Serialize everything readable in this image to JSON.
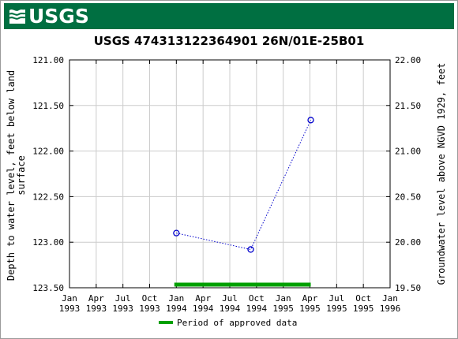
{
  "banner": {
    "logo_text": "USGS",
    "color": "#006f41"
  },
  "chart_data": {
    "type": "scatter",
    "title": "USGS 474313122364901 26N/01E-25B01",
    "ylabel_left": "Depth to water level, feet below land surface",
    "ylabel_right": "Groundwater level above NGVD 1929, feet",
    "left_axis": {
      "min": 121.0,
      "max": 123.5,
      "inverted": true,
      "ticks": [
        "121.00",
        "121.50",
        "122.00",
        "122.50",
        "123.00",
        "123.50"
      ]
    },
    "right_axis": {
      "min": 19.5,
      "max": 22.0,
      "ticks": [
        "22.00",
        "21.50",
        "21.00",
        "20.50",
        "20.00",
        "19.50"
      ]
    },
    "x_axis": {
      "start": "1993-01-01",
      "end": "1996-01-01",
      "ticks": [
        [
          "Jan",
          "1993"
        ],
        [
          "Apr",
          "1993"
        ],
        [
          "Jul",
          "1993"
        ],
        [
          "Oct",
          "1993"
        ],
        [
          "Jan",
          "1994"
        ],
        [
          "Apr",
          "1994"
        ],
        [
          "Jul",
          "1994"
        ],
        [
          "Oct",
          "1994"
        ],
        [
          "Jan",
          "1995"
        ],
        [
          "Apr",
          "1995"
        ],
        [
          "Jul",
          "1995"
        ],
        [
          "Oct",
          "1995"
        ],
        [
          "Jan",
          "1996"
        ]
      ]
    },
    "series": [
      {
        "points": [
          {
            "date": "1994-01-01",
            "depth": 122.9
          },
          {
            "date": "1994-09-12",
            "depth": 123.08
          },
          {
            "date": "1995-04-05",
            "depth": 121.66
          }
        ],
        "color": "#0000cc",
        "line_style": "dotted",
        "marker": "open-circle"
      }
    ],
    "approved_period": {
      "start": "1993-12-25",
      "end": "1995-04-05",
      "color": "#00a000"
    },
    "legend": {
      "label": "Period of approved data",
      "placement": "bottom-center"
    },
    "grid": true
  }
}
